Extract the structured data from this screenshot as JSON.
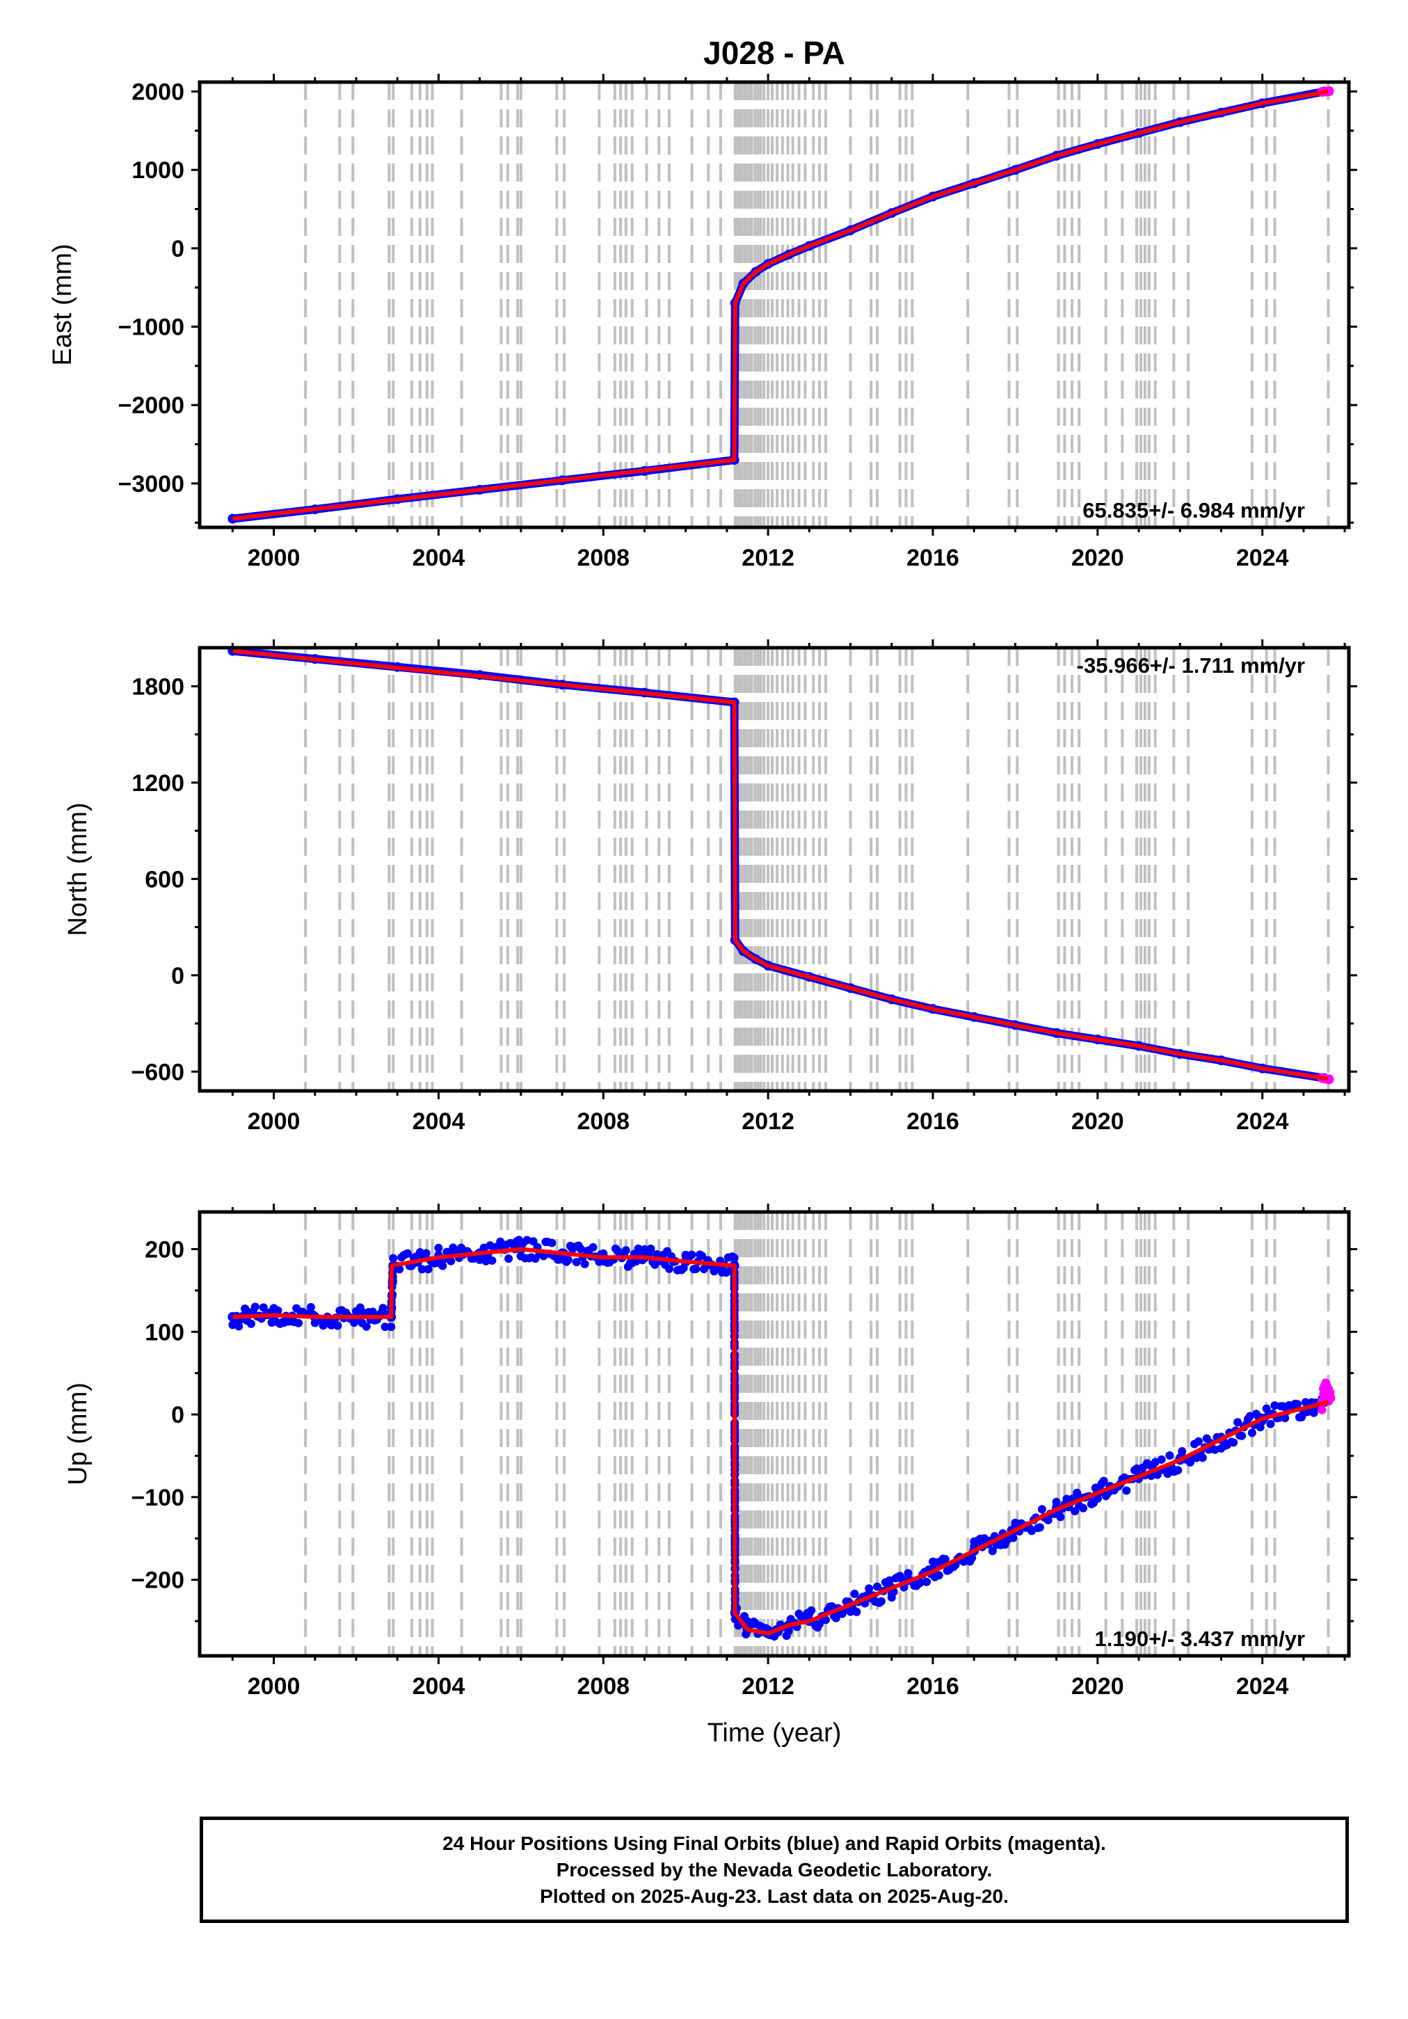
{
  "page": {
    "title": "J028 - PA",
    "footer_lines": [
      "24 Hour Positions Using Final Orbits (blue) and Rapid Orbits (magenta).",
      "Processed by the Nevada Geodetic Laboratory.",
      "Plotted on 2025-Aug-23. Last data on 2025-Aug-20."
    ]
  },
  "colors": {
    "final_orbits": "#0000ff",
    "rapid_orbits": "#ff00ff",
    "model": "#ff0000",
    "event_lines": "#c0c0c0",
    "frame": "#000000"
  },
  "chart_data": [
    {
      "type": "scatter",
      "title": "J028 - PA",
      "ylabel": "East (mm)",
      "xlabel": "",
      "xlim": [
        1998.2,
        2026.1
      ],
      "ylim": [
        -3560,
        2120
      ],
      "xticks": [
        2000,
        2004,
        2008,
        2012,
        2016,
        2020,
        2024
      ],
      "yticks": [
        -3000,
        -2000,
        -1000,
        0,
        1000,
        2000
      ],
      "grid": false,
      "rate_label": "65.835+/- 6.984 mm/yr",
      "rate_position": "bottom-right",
      "series": [
        {
          "name": "Final Orbits",
          "color": "#0000ff",
          "x": [
            1999.0,
            2001.0,
            2003.0,
            2005.0,
            2007.0,
            2009.0,
            2011.18,
            2011.2,
            2011.4,
            2011.7,
            2012.0,
            2012.5,
            2013.0,
            2014.0,
            2015.0,
            2016.0,
            2017.0,
            2018.0,
            2019.0,
            2020.0,
            2021.0,
            2022.0,
            2023.0,
            2024.0,
            2025.5
          ],
          "y": [
            -3450,
            -3330,
            -3200,
            -3080,
            -2960,
            -2840,
            -2700,
            -700,
            -450,
            -300,
            -200,
            -80,
            30,
            230,
            450,
            660,
            830,
            1000,
            1180,
            1330,
            1470,
            1610,
            1730,
            1850,
            2000
          ]
        },
        {
          "name": "Rapid Orbits",
          "color": "#ff00ff",
          "x": [
            2025.45,
            2025.55,
            2025.62
          ],
          "y": [
            1995,
            2000,
            2005
          ]
        }
      ],
      "model": {
        "name": "Model",
        "color": "#ff0000",
        "x": [
          1999.0,
          2011.18,
          2011.19,
          2011.2,
          2011.4,
          2011.7,
          2012.0,
          2012.5,
          2013.0,
          2014.0,
          2015.0,
          2016.0,
          2017.0,
          2018.0,
          2019.0,
          2020.0,
          2021.0,
          2022.0,
          2023.0,
          2024.0,
          2025.6
        ],
        "y": [
          -3450,
          -2700,
          -1500,
          -700,
          -450,
          -300,
          -200,
          -80,
          30,
          230,
          450,
          660,
          830,
          1000,
          1180,
          1330,
          1470,
          1610,
          1730,
          1850,
          2000
        ]
      }
    },
    {
      "type": "scatter",
      "ylabel": "North (mm)",
      "xlabel": "",
      "xlim": [
        1998.2,
        2026.1
      ],
      "ylim": [
        -720,
        2040
      ],
      "xticks": [
        2000,
        2004,
        2008,
        2012,
        2016,
        2020,
        2024
      ],
      "yticks": [
        -600,
        0,
        600,
        1200,
        1800
      ],
      "grid": false,
      "rate_label": "-35.966+/- 1.711 mm/yr",
      "rate_position": "top-right",
      "series": [
        {
          "name": "Final Orbits",
          "color": "#0000ff",
          "x": [
            1999.0,
            2001.0,
            2003.0,
            2005.0,
            2007.0,
            2009.0,
            2011.18,
            2011.2,
            2011.4,
            2011.7,
            2012.0,
            2013.0,
            2014.0,
            2015.0,
            2016.0,
            2017.0,
            2018.0,
            2019.0,
            2020.0,
            2021.0,
            2022.0,
            2023.0,
            2024.0,
            2025.5
          ],
          "y": [
            2020,
            1970,
            1920,
            1870,
            1810,
            1760,
            1700,
            220,
            150,
            100,
            60,
            -10,
            -80,
            -150,
            -210,
            -260,
            -310,
            -360,
            -400,
            -440,
            -490,
            -530,
            -580,
            -640
          ]
        },
        {
          "name": "Rapid Orbits",
          "color": "#ff00ff",
          "x": [
            2025.45,
            2025.55,
            2025.62
          ],
          "y": [
            -640,
            -645,
            -648
          ]
        }
      ],
      "model": {
        "name": "Model",
        "color": "#ff0000",
        "x": [
          1999.0,
          2011.18,
          2011.19,
          2011.2,
          2011.4,
          2011.7,
          2012.0,
          2013.0,
          2014.0,
          2015.0,
          2016.0,
          2017.0,
          2018.0,
          2019.0,
          2020.0,
          2021.0,
          2022.0,
          2023.0,
          2024.0,
          2025.6
        ],
        "y": [
          2020,
          1700,
          1000,
          220,
          150,
          100,
          60,
          -10,
          -80,
          -150,
          -210,
          -260,
          -310,
          -360,
          -400,
          -440,
          -490,
          -530,
          -580,
          -645
        ]
      }
    },
    {
      "type": "scatter",
      "ylabel": "Up (mm)",
      "xlabel": "Time (year)",
      "xlim": [
        1998.2,
        2026.1
      ],
      "ylim": [
        -292,
        245
      ],
      "xticks": [
        2000,
        2004,
        2008,
        2012,
        2016,
        2020,
        2024
      ],
      "yticks": [
        -200,
        -100,
        0,
        100,
        200
      ],
      "grid": false,
      "rate_label": "1.190+/- 3.437 mm/yr",
      "rate_position": "bottom-right",
      "series": [
        {
          "name": "Final Orbits",
          "color": "#0000ff",
          "x": [
            1999.0,
            2000.0,
            2001.0,
            2002.0,
            2002.85,
            2002.9,
            2004.0,
            2005.0,
            2006.0,
            2007.0,
            2008.0,
            2009.0,
            2010.0,
            2011.18,
            2011.2,
            2011.5,
            2012.0,
            2012.5,
            2013.0,
            2014.0,
            2015.0,
            2016.0,
            2017.0,
            2018.0,
            2019.0,
            2020.0,
            2021.0,
            2022.0,
            2023.0,
            2024.0,
            2025.5
          ],
          "y": [
            118,
            120,
            118,
            118,
            118,
            180,
            190,
            195,
            200,
            195,
            190,
            190,
            185,
            180,
            -240,
            -260,
            -265,
            -255,
            -250,
            -230,
            -210,
            -190,
            -165,
            -140,
            -115,
            -95,
            -75,
            -55,
            -30,
            -5,
            15
          ]
        },
        {
          "name": "Rapid Orbits",
          "color": "#ff00ff",
          "x": [
            2025.45,
            2025.5,
            2025.55,
            2025.6,
            2025.65
          ],
          "y": [
            15,
            25,
            35,
            30,
            20
          ]
        }
      ],
      "model": {
        "name": "Model",
        "color": "#ff0000",
        "x": [
          1999.0,
          2000.0,
          2001.0,
          2002.0,
          2002.85,
          2002.86,
          2004.0,
          2005.0,
          2006.0,
          2007.0,
          2008.0,
          2009.0,
          2010.0,
          2011.18,
          2011.19,
          2011.5,
          2012.0,
          2012.5,
          2013.0,
          2014.0,
          2015.0,
          2016.0,
          2017.0,
          2018.0,
          2019.0,
          2020.0,
          2021.0,
          2022.0,
          2023.0,
          2024.0,
          2025.6
        ],
        "y": [
          118,
          120,
          118,
          118,
          118,
          180,
          190,
          195,
          200,
          195,
          190,
          190,
          185,
          180,
          -240,
          -260,
          -265,
          -255,
          -250,
          -230,
          -210,
          -190,
          -165,
          -140,
          -115,
          -95,
          -75,
          -55,
          -30,
          -5,
          15
        ]
      }
    }
  ],
  "event_line_years": [
    2000.77,
    2001.6,
    2001.92,
    2002.8,
    2002.9,
    2003.35,
    2003.55,
    2003.72,
    2003.85,
    2004.56,
    2005.52,
    2005.68,
    2005.92,
    2006.0,
    2006.87,
    2007.05,
    2007.9,
    2008.28,
    2008.42,
    2008.55,
    2008.7,
    2009.05,
    2009.35,
    2009.6,
    2010.15,
    2010.55,
    2010.85,
    2011.2,
    2011.25,
    2011.3,
    2011.35,
    2011.42,
    2011.48,
    2011.55,
    2011.6,
    2011.68,
    2011.75,
    2011.82,
    2011.9,
    2012.0,
    2012.1,
    2012.22,
    2012.35,
    2012.48,
    2012.6,
    2012.75,
    2012.9,
    2013.1,
    2013.25,
    2013.4,
    2014.0,
    2014.5,
    2014.65,
    2015.2,
    2015.35,
    2015.5,
    2016.85,
    2017.85,
    2018.05,
    2019.05,
    2019.2,
    2019.38,
    2019.55,
    2020.2,
    2020.6,
    2020.95,
    2021.05,
    2021.15,
    2021.25,
    2021.4,
    2021.85,
    2022.2,
    2023.75,
    2024.1,
    2024.3,
    2025.6
  ]
}
